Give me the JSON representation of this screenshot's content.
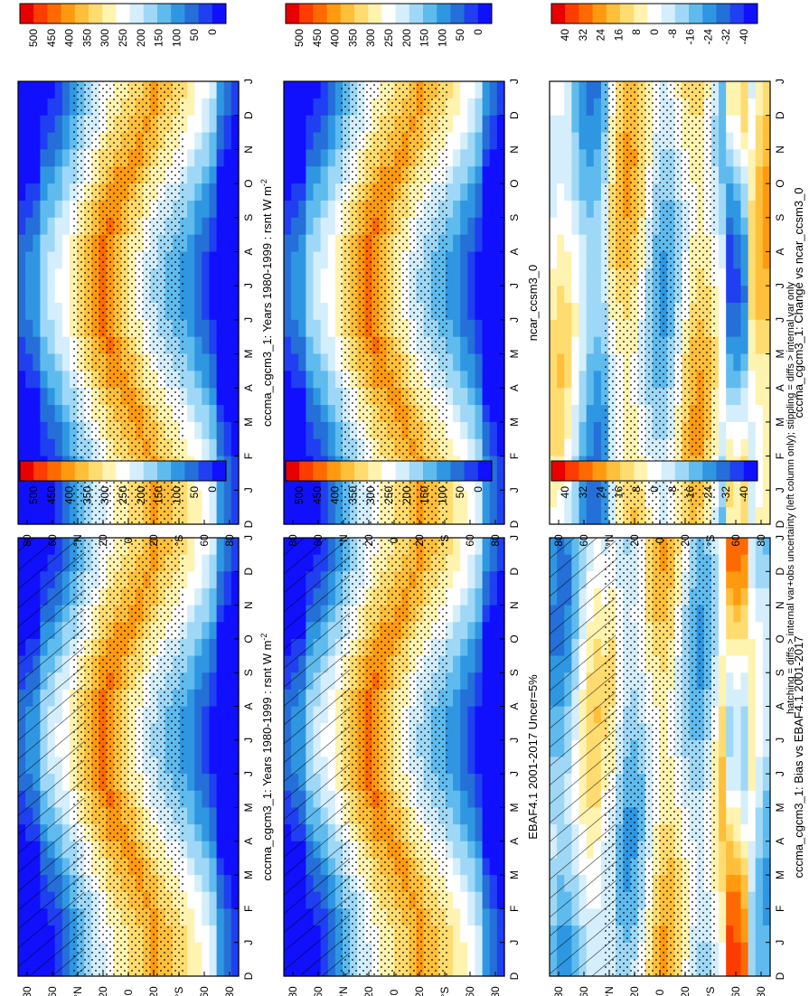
{
  "chart_data": {
    "type": "heatmap",
    "orientation": "figure rotated 90 degrees counter-clockwise",
    "footnote": "hatching = diffs > internal var+obs uncertainty (left column only); stippling = diffs > internal var only",
    "x_ticks": [
      "D",
      "J",
      "F",
      "M",
      "A",
      "M",
      "J",
      "J",
      "A",
      "S",
      "O",
      "N",
      "D",
      "J"
    ],
    "y_ticks": [
      "80",
      "60",
      "°N",
      "20",
      "0",
      "20",
      "°S",
      "60",
      "80"
    ],
    "field_colorbar": {
      "ticks": [
        "500",
        "450",
        "400",
        "350",
        "300",
        "250",
        "200",
        "150",
        "100",
        "50",
        "0"
      ],
      "colors": [
        "#e80000",
        "#ff3c00",
        "#ff6a00",
        "#ff9a10",
        "#ffbf3a",
        "#ffdc70",
        "#fff3b0",
        "#ffffff",
        "#d4eefc",
        "#9fd8f6",
        "#5fbbee",
        "#2f97e2",
        "#256fd8",
        "#1f3ff0",
        "#1010ff"
      ]
    },
    "diff_colorbar": {
      "ticks": [
        "40",
        "32",
        "24",
        "16",
        "8",
        "0",
        "-8",
        "-16",
        "-24",
        "-32",
        "-40"
      ],
      "colors": [
        "#e80000",
        "#ff3c00",
        "#ff6a00",
        "#ff9a10",
        "#ffbf3a",
        "#ffdc70",
        "#fff3b0",
        "#ffffff",
        "#d4eefc",
        "#9fd8f6",
        "#5fbbee",
        "#2f97e2",
        "#256fd8",
        "#1f3ff0",
        "#1010ff"
      ]
    },
    "panels": [
      {
        "id": "model-field-left",
        "title": "cccma_cgcm3_1: Years 1980-1999 : rsnt W m",
        "title_sup": "-2",
        "kind": "field",
        "hatched": true,
        "stippled": true
      },
      {
        "id": "obs-field",
        "title": "EBAF4.1 2001-2017 Uncer=5%",
        "title_sup": "",
        "kind": "field",
        "hatched": true,
        "stippled": true
      },
      {
        "id": "bias",
        "title": "cccma_cgcm3_1: Bias vs EBAF4.1 2001-2017",
        "title_sup": "",
        "kind": "diff",
        "hatched": true,
        "stippled": true
      },
      {
        "id": "model-field-right",
        "title": "cccma_cgcm3_1: Years 1980-1999 : rsnt W m",
        "title_sup": "-2",
        "kind": "field",
        "hatched": false,
        "stippled": true
      },
      {
        "id": "ref-model-field",
        "title": "ncar_ccsm3_0",
        "title_sup": "",
        "kind": "field",
        "hatched": false,
        "stippled": true
      },
      {
        "id": "change",
        "title": "cccma_cgcm3_1: Change vs ncar_ccsm3_0",
        "title_sup": "",
        "kind": "diff",
        "hatched": false,
        "stippled": true
      }
    ]
  }
}
